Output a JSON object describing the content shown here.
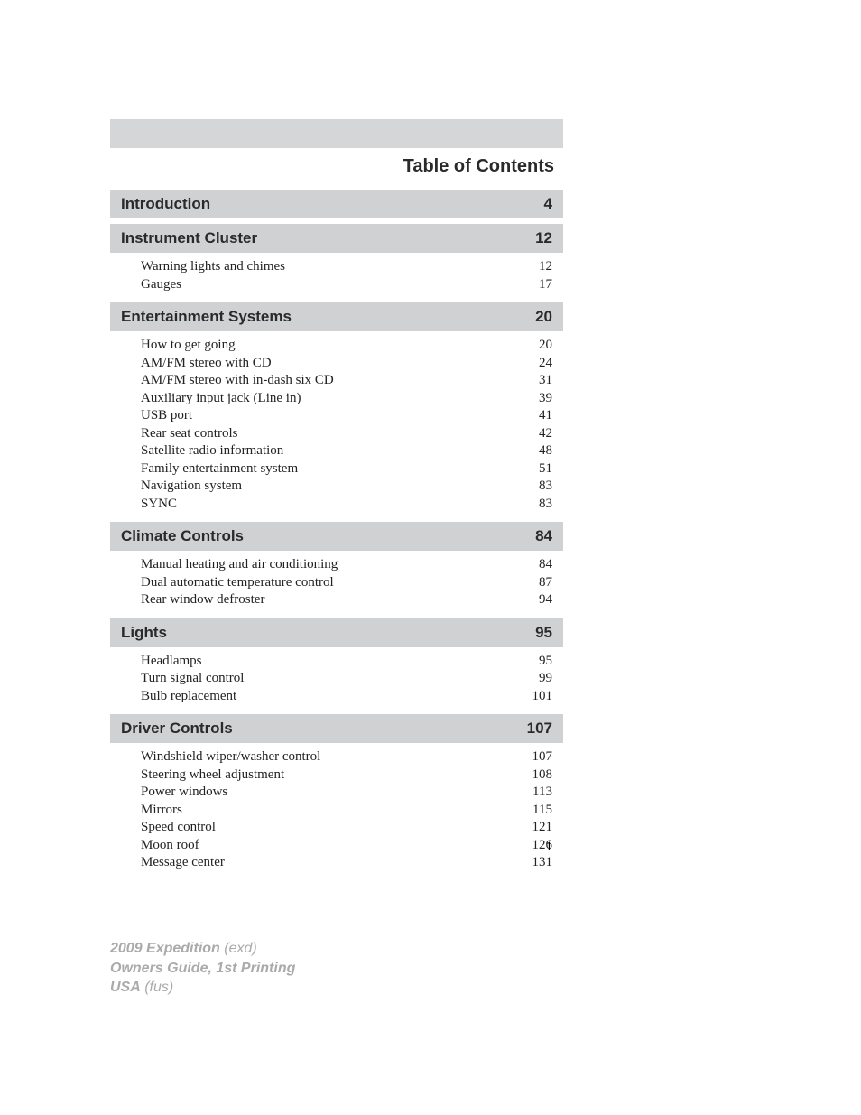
{
  "colors": {
    "header_bg": "#d5d6d8",
    "section_bg": "#d0d1d3",
    "text_dark": "#2a2a2a",
    "body_text": "#222222",
    "footer_text": "#a9aaac",
    "page_bg": "#ffffff"
  },
  "typography": {
    "title_family": "Arial",
    "title_size_pt": 15,
    "section_size_pt": 13,
    "body_family": "Georgia",
    "body_size_pt": 11,
    "footer_size_pt": 12
  },
  "title": "Table of Contents",
  "page_number": "1",
  "sections": [
    {
      "heading": "Introduction",
      "page": "4",
      "items": []
    },
    {
      "heading": "Instrument Cluster",
      "page": "12",
      "items": [
        {
          "label": "Warning lights and chimes",
          "page": "12"
        },
        {
          "label": "Gauges",
          "page": "17"
        }
      ]
    },
    {
      "heading": "Entertainment Systems",
      "page": "20",
      "items": [
        {
          "label": "How to get going",
          "page": "20"
        },
        {
          "label": "AM/FM stereo with CD",
          "page": "24"
        },
        {
          "label": "AM/FM stereo with in-dash six CD",
          "page": "31"
        },
        {
          "label": "Auxiliary input jack (Line in)",
          "page": "39"
        },
        {
          "label": "USB port",
          "page": "41"
        },
        {
          "label": "Rear seat controls",
          "page": "42"
        },
        {
          "label": "Satellite radio information",
          "page": "48"
        },
        {
          "label": "Family entertainment system",
          "page": "51"
        },
        {
          "label": "Navigation system",
          "page": "83"
        },
        {
          "label": "SYNC",
          "page": "83"
        }
      ]
    },
    {
      "heading": "Climate Controls",
      "page": "84",
      "items": [
        {
          "label": "Manual heating and air conditioning",
          "page": "84"
        },
        {
          "label": "Dual automatic temperature control",
          "page": "87"
        },
        {
          "label": "Rear window defroster",
          "page": "94"
        }
      ]
    },
    {
      "heading": "Lights",
      "page": "95",
      "items": [
        {
          "label": "Headlamps",
          "page": "95"
        },
        {
          "label": "Turn signal control",
          "page": "99"
        },
        {
          "label": "Bulb replacement",
          "page": "101"
        }
      ]
    },
    {
      "heading": "Driver Controls",
      "page": "107",
      "items": [
        {
          "label": "Windshield wiper/washer control",
          "page": "107"
        },
        {
          "label": "Steering wheel adjustment",
          "page": "108"
        },
        {
          "label": "Power windows",
          "page": "113"
        },
        {
          "label": "Mirrors",
          "page": "115"
        },
        {
          "label": "Speed control",
          "page": "121"
        },
        {
          "label": "Moon roof",
          "page": "126"
        },
        {
          "label": "Message center",
          "page": "131"
        }
      ]
    }
  ],
  "footer": {
    "line1_bold": "2009 Expedition",
    "line1_ital": " (exd)",
    "line2_bold": "Owners Guide, 1st Printing",
    "line3_bold": "USA",
    "line3_ital": " (fus)"
  }
}
